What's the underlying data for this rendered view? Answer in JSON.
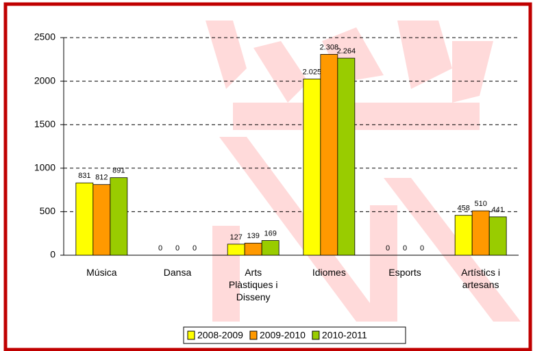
{
  "chart_data": {
    "type": "bar",
    "categories": [
      "Música",
      "Dansa",
      "Arts Plàstiques i Disseny",
      "Idiomes",
      "Esports",
      "Artístics i artesans"
    ],
    "series": [
      {
        "name": "2008-2009",
        "color": "#ffff00",
        "values": [
          831,
          0,
          127,
          2025,
          0,
          458
        ],
        "value_labels": [
          "831",
          "0",
          "127",
          "2.025",
          "0",
          "458"
        ]
      },
      {
        "name": "2009-2010",
        "color": "#ff9900",
        "values": [
          812,
          0,
          139,
          2308,
          0,
          510
        ],
        "value_labels": [
          "812",
          "0",
          "139",
          "2.308",
          "0",
          "510"
        ]
      },
      {
        "name": "2010-2011",
        "color": "#99cc00",
        "values": [
          891,
          0,
          169,
          2264,
          0,
          441
        ],
        "value_labels": [
          "891",
          "0",
          "169",
          "2.264",
          "0",
          "441"
        ]
      }
    ],
    "ylim": [
      0,
      2500
    ],
    "yticks": [
      0,
      500,
      1000,
      1500,
      2000,
      2500
    ],
    "grid": true,
    "legend": "bottom"
  }
}
